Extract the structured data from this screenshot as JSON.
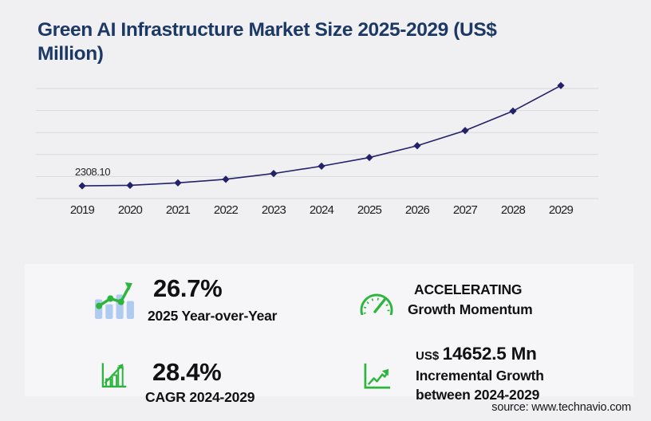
{
  "title": {
    "line1": "Green AI Infrastructure Market Size 2025-2029 (US$",
    "line2": "Million)"
  },
  "chart_data": {
    "type": "line",
    "title": "Green AI Infrastructure Market Size 2025-2029 (US$ Million)",
    "x": [
      "2019",
      "2020",
      "2021",
      "2022",
      "2023",
      "2024",
      "2025",
      "2026",
      "2027",
      "2028",
      "2029"
    ],
    "series": [
      {
        "name": "Market size (US$ Million)",
        "values": [
          2308.1,
          2400,
          2850,
          3500,
          4550,
          5884.4,
          7455.5,
          9600,
          12350,
          15900,
          20536.9
        ]
      }
    ],
    "point_label": {
      "x": "2019",
      "text": "2308.10"
    },
    "xlabel": "",
    "ylabel": "",
    "ylim": [
      0,
      20000
    ],
    "gridlines": 6,
    "grid": true,
    "legend": false,
    "marker": "diamond"
  },
  "stats": {
    "yoy": {
      "icon": "bar-chart-trend-icon",
      "value": "26.7%",
      "caption": "2025 Year-over-Year"
    },
    "momentum": {
      "icon": "speedometer-icon",
      "line1": "ACCELERATING",
      "line2": "Growth Momentum"
    },
    "cagr": {
      "icon": "growth-bar-chart-icon",
      "value": "28.4%",
      "caption": "CAGR 2024-2029"
    },
    "incremental": {
      "icon": "axes-trend-arrow-icon",
      "prefix": "US$",
      "value": "14652.5 Mn",
      "caption_line1": "Incremental Growth",
      "caption_line2": "between 2024-2029"
    }
  },
  "source": "source: www.technavio.com",
  "colors": {
    "page_bg": "#f0f0f2",
    "panel_bg": "#f6f6f8",
    "title_navy": "#1c3966",
    "line": "#232169",
    "grid": "#d9d9db",
    "green": "#2db53e",
    "icon_bar_blue": "#b0cbf0",
    "text_dark": "#111111"
  }
}
